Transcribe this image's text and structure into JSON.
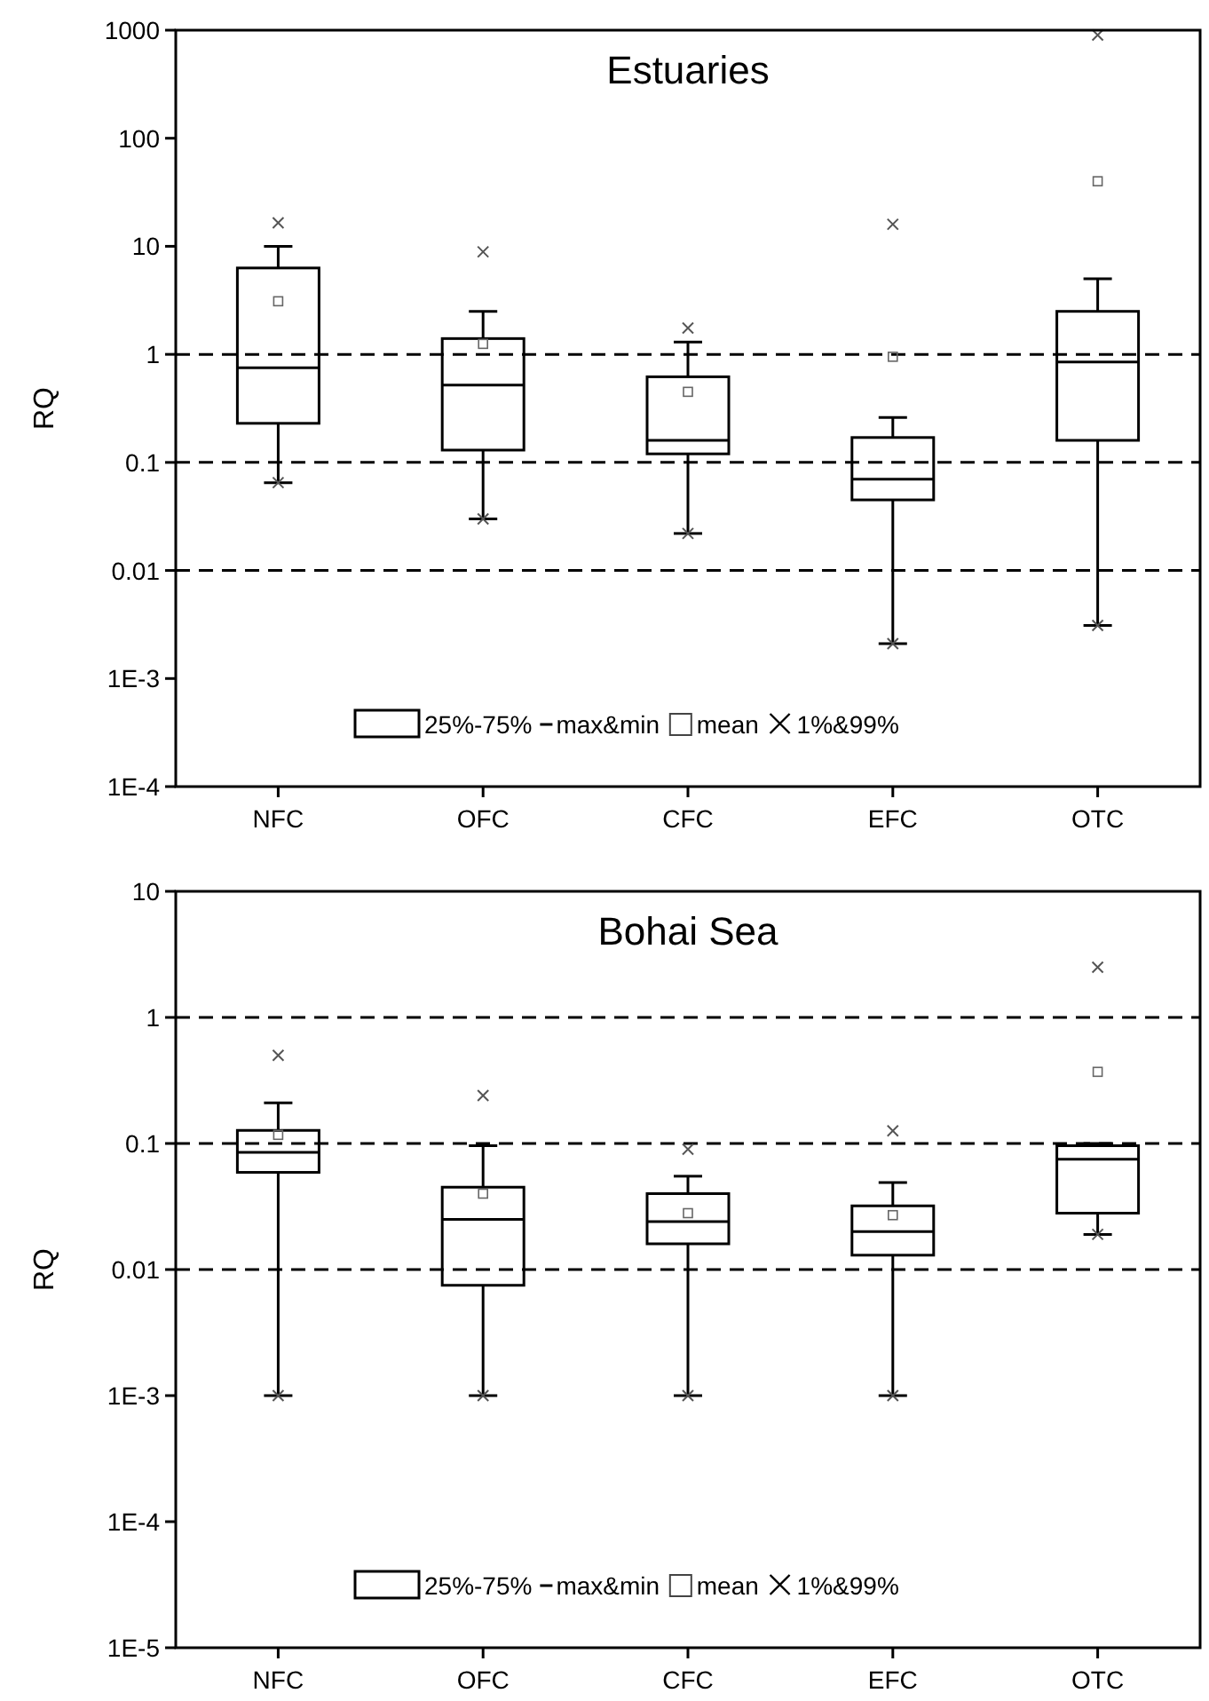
{
  "chart_data": [
    {
      "type": "box",
      "title": "Estuaries",
      "ylabel": "RQ",
      "categories": [
        "NFC",
        "OFC",
        "CFC",
        "EFC",
        "OTC"
      ],
      "log": true,
      "ylim": [
        0.0001,
        1000
      ],
      "yticks": [
        1000,
        100,
        10,
        1,
        0.1,
        0.01,
        {
          "value": 0.001,
          "label": "1E-3"
        },
        {
          "value": 0.0001,
          "label": "1E-4"
        }
      ],
      "ref_lines": [
        {
          "axis": "y",
          "value": 1,
          "line_style": "dashed"
        },
        {
          "axis": "y",
          "value": 0.1,
          "line_style": "dashed"
        },
        {
          "axis": "y",
          "value": 0.01,
          "line_style": "dashed"
        }
      ],
      "legend": "bottom",
      "annotations": [
        "max&min",
        "mean",
        "1%&99%"
      ],
      "series": [
        {
          "name": "25%-75%",
          "boxes": [
            {
              "low": 0.065,
              "q1": 0.23,
              "median": 0.75,
              "q3": 6.3,
              "high": 10,
              "mean": 3.1,
              "outliers": [
                0.065,
                16.5
              ]
            },
            {
              "low": 0.03,
              "q1": 0.13,
              "median": 0.52,
              "q3": 1.4,
              "high": 2.5,
              "mean": 1.25,
              "outliers": [
                0.03,
                8.9
              ]
            },
            {
              "low": 0.022,
              "q1": 0.12,
              "median": 0.16,
              "q3": 0.62,
              "high": 1.3,
              "mean": 0.45,
              "outliers": [
                0.022,
                1.75
              ]
            },
            {
              "low": 0.0021,
              "q1": 0.045,
              "median": 0.07,
              "q3": 0.17,
              "high": 0.26,
              "mean": 0.95,
              "outliers": [
                0.0021,
                16
              ]
            },
            {
              "low": 0.0031,
              "q1": 0.16,
              "median": 0.85,
              "q3": 2.5,
              "high": 5,
              "mean": 40,
              "outliers": [
                0.0031,
                900
              ]
            }
          ]
        }
      ]
    },
    {
      "type": "box",
      "title": "Bohai Sea",
      "ylabel": "RQ",
      "categories": [
        "NFC",
        "OFC",
        "CFC",
        "EFC",
        "OTC"
      ],
      "log": true,
      "ylim": [
        1e-05,
        10
      ],
      "yticks": [
        10,
        1,
        0.1,
        0.01,
        {
          "value": 0.001,
          "label": "1E-3"
        },
        {
          "value": 0.0001,
          "label": "1E-4"
        },
        {
          "value": 1e-05,
          "label": "1E-5"
        }
      ],
      "ref_lines": [
        {
          "axis": "y",
          "value": 1,
          "line_style": "dashed"
        },
        {
          "axis": "y",
          "value": 0.1,
          "line_style": "dashed"
        },
        {
          "axis": "y",
          "value": 0.01,
          "line_style": "dashed"
        }
      ],
      "legend": "bottom",
      "annotations": [
        "max&min",
        "mean",
        "1%&99%"
      ],
      "series": [
        {
          "name": "25%-75%",
          "boxes": [
            {
              "low": 0.001,
              "q1": 0.059,
              "median": 0.085,
              "q3": 0.127,
              "high": 0.21,
              "mean": 0.117,
              "outliers": [
                0.001,
                0.5
              ]
            },
            {
              "low": 0.001,
              "q1": 0.0075,
              "median": 0.025,
              "q3": 0.045,
              "high": 0.096,
              "mean": 0.04,
              "outliers": [
                0.001,
                0.24
              ]
            },
            {
              "low": 0.001,
              "q1": 0.016,
              "median": 0.024,
              "q3": 0.04,
              "high": 0.055,
              "mean": 0.028,
              "outliers": [
                0.001,
                0.09
              ]
            },
            {
              "low": 0.001,
              "q1": 0.013,
              "median": 0.02,
              "q3": 0.032,
              "high": 0.049,
              "mean": 0.027,
              "outliers": [
                0.001,
                0.126
              ]
            },
            {
              "low": 0.019,
              "q1": 0.028,
              "median": 0.075,
              "q3": 0.096,
              "high": 0.1,
              "mean": 0.37,
              "outliers": [
                0.019,
                2.5
              ]
            }
          ]
        }
      ]
    }
  ]
}
